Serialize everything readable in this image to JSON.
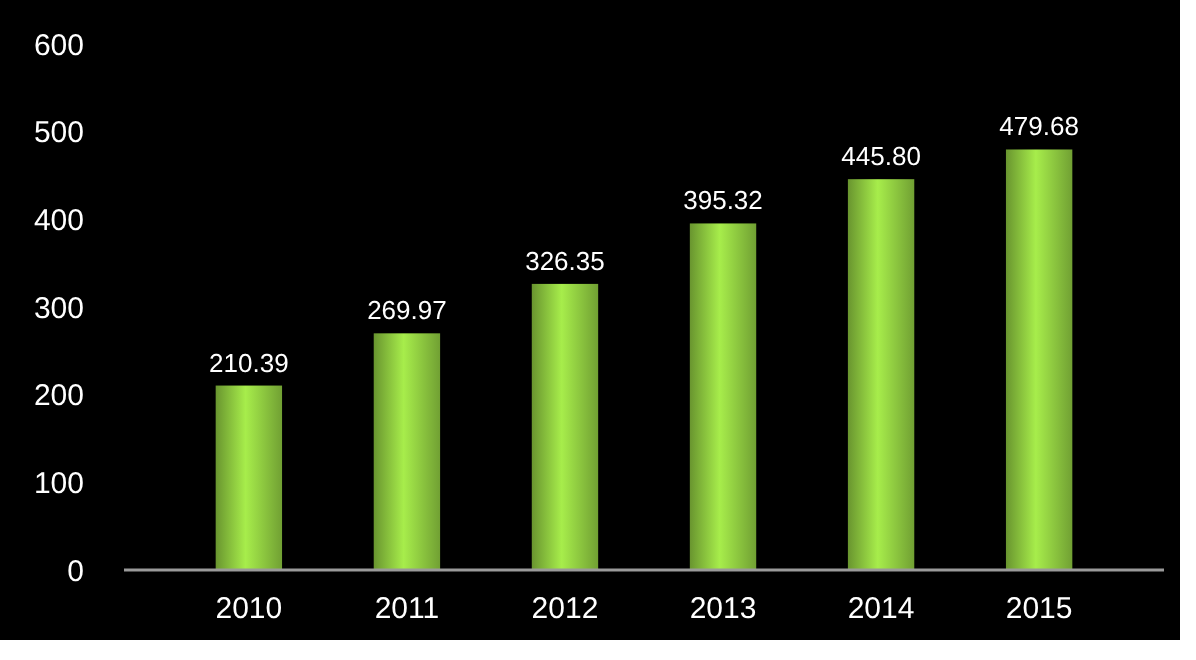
{
  "chart_data": {
    "type": "bar",
    "categories": [
      "2010",
      "2011",
      "2012",
      "2013",
      "2014",
      "2015"
    ],
    "values": [
      210.39,
      269.97,
      326.35,
      395.32,
      445.8,
      479.68
    ],
    "value_labels": [
      "210.39",
      "269.97",
      "326.35",
      "395.32",
      "445.80",
      "479.68"
    ],
    "color": "#8cc63f",
    "ylim": [
      0,
      600
    ],
    "yticks": [
      0,
      100,
      200,
      300,
      400,
      500,
      600
    ]
  }
}
